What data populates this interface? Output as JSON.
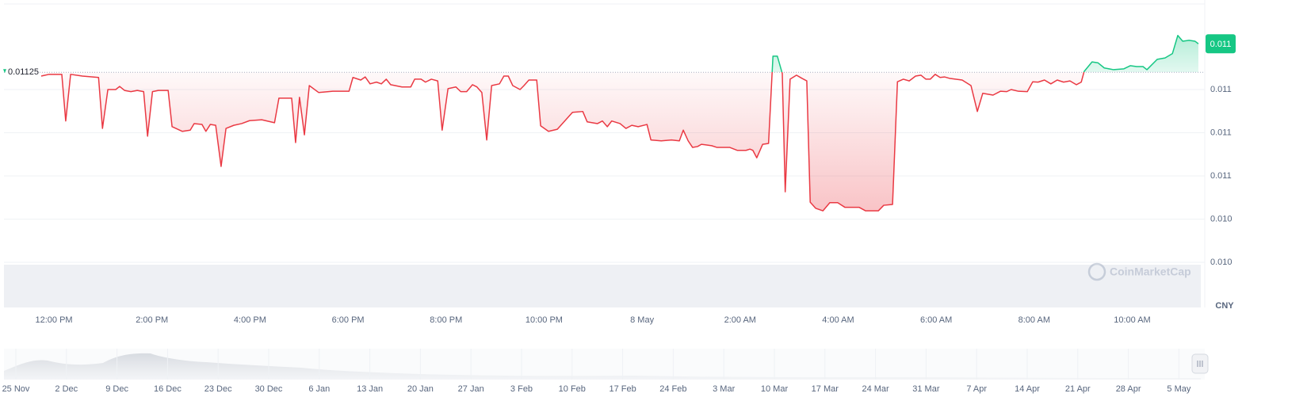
{
  "chart_data": {
    "type": "line",
    "x": [
      11.74,
      11.9,
      12.16,
      12.24,
      12.34,
      12.58,
      12.91,
      12.99,
      13.1,
      13.26,
      13.34,
      13.44,
      13.57,
      13.7,
      13.83,
      13.91,
      14.01,
      14.13,
      14.33,
      14.41,
      14.62,
      14.78,
      14.86,
      15.02,
      15.1,
      15.19,
      15.3,
      15.41,
      15.51,
      15.67,
      15.83,
      15.99,
      16.24,
      16.5,
      16.59,
      16.85,
      16.93,
      17.01,
      17.11,
      17.21,
      17.4,
      17.69,
      18.02,
      18.1,
      18.26,
      18.35,
      18.45,
      18.58,
      18.68,
      18.78,
      18.87,
      19.1,
      19.28,
      19.36,
      19.49,
      19.58,
      19.7,
      19.83,
      19.92,
      20.04,
      20.2,
      20.3,
      20.42,
      20.54,
      20.63,
      20.73,
      20.83,
      20.93,
      21.09,
      21.18,
      21.27,
      21.36,
      21.51,
      21.59,
      21.69,
      21.85,
      21.93,
      22.09,
      22.27,
      22.58,
      22.79,
      22.88,
      23.09,
      23.19,
      23.29,
      23.38,
      23.55,
      23.67,
      23.79,
      23.92,
      24.1,
      24.18,
      24.39,
      24.6,
      24.76,
      24.84,
      24.94,
      25.03,
      25.13,
      25.21,
      25.42,
      25.53,
      25.79,
      25.94,
      26.12,
      26.2,
      26.26,
      26.34,
      26.46,
      26.58,
      26.67,
      26.76,
      26.86,
      26.92,
      27.02,
      27.15,
      27.26,
      27.36,
      27.43,
      27.54,
      27.69,
      27.83,
      27.99,
      28.14,
      28.43,
      28.56,
      28.82,
      28.93,
      29.11,
      29.21,
      29.33,
      29.45,
      29.58,
      29.69,
      29.79,
      29.88,
      29.98,
      30.08,
      30.17,
      30.27,
      30.53,
      30.71,
      30.84,
      30.95,
      31.16,
      31.31,
      31.44,
      31.53,
      31.68,
      31.86,
      31.97,
      32.08,
      32.21,
      32.34,
      32.47,
      32.6,
      32.73,
      32.86,
      32.96,
      33.02,
      33.18,
      33.3,
      33.43,
      33.62,
      33.83,
      33.96,
      34.09,
      34.22,
      34.3,
      34.51,
      34.67,
      34.82,
      34.93,
      35.03,
      35.16,
      35.28,
      35.35
    ],
    "values": [
      0.011228,
      0.011238,
      0.011238,
      0.010968,
      0.011238,
      0.011228,
      0.01122,
      0.010925,
      0.01115,
      0.01115,
      0.011168,
      0.011145,
      0.011138,
      0.011145,
      0.011138,
      0.01088,
      0.011138,
      0.011145,
      0.011145,
      0.010935,
      0.010908,
      0.010915,
      0.010953,
      0.010948,
      0.010908,
      0.010948,
      0.010943,
      0.010705,
      0.010925,
      0.010943,
      0.010953,
      0.01097,
      0.010975,
      0.010958,
      0.0111,
      0.0111,
      0.010843,
      0.011105,
      0.010888,
      0.011173,
      0.011133,
      0.01114,
      0.01114,
      0.01122,
      0.011205,
      0.011223,
      0.011183,
      0.011193,
      0.011183,
      0.01121,
      0.011178,
      0.011165,
      0.011165,
      0.01121,
      0.01121,
      0.011193,
      0.01121,
      0.0112,
      0.010915,
      0.011155,
      0.011165,
      0.011138,
      0.011138,
      0.011178,
      0.011165,
      0.011133,
      0.010858,
      0.011173,
      0.011183,
      0.011228,
      0.011228,
      0.011173,
      0.01115,
      0.011173,
      0.011205,
      0.011205,
      0.01094,
      0.010908,
      0.01092,
      0.011018,
      0.011023,
      0.010963,
      0.010953,
      0.010968,
      0.010935,
      0.010968,
      0.010953,
      0.010925,
      0.010943,
      0.010935,
      0.010948,
      0.010858,
      0.010853,
      0.010858,
      0.010853,
      0.010915,
      0.010853,
      0.010815,
      0.01082,
      0.010833,
      0.010825,
      0.010815,
      0.010815,
      0.010798,
      0.010798,
      0.010805,
      0.010798,
      0.010755,
      0.010833,
      0.010838,
      0.011343,
      0.011343,
      0.011243,
      0.010558,
      0.01121,
      0.011233,
      0.011215,
      0.0112,
      0.010498,
      0.010463,
      0.010448,
      0.010495,
      0.010495,
      0.010468,
      0.010468,
      0.010448,
      0.010448,
      0.01048,
      0.010485,
      0.011195,
      0.01121,
      0.0112,
      0.011228,
      0.011233,
      0.01121,
      0.01121,
      0.011238,
      0.01122,
      0.011223,
      0.011215,
      0.011205,
      0.011173,
      0.011023,
      0.011128,
      0.011118,
      0.01114,
      0.011138,
      0.01115,
      0.01114,
      0.011138,
      0.011195,
      0.011193,
      0.011205,
      0.011183,
      0.011205,
      0.011193,
      0.0112,
      0.011178,
      0.011193,
      0.011255,
      0.01131,
      0.011305,
      0.011275,
      0.011265,
      0.01127,
      0.011288,
      0.011283,
      0.011283,
      0.011265,
      0.011325,
      0.011333,
      0.011358,
      0.011463,
      0.01143,
      0.011435,
      0.01143,
      0.011415
    ],
    "last_value_label": "0.011",
    "baseline": 0.01125,
    "color_up": "#16c784",
    "color_down": "#ea3943",
    "xlim": [
      10.98,
      35.48
    ],
    "xticks": [
      {
        "value": 12,
        "label": "12:00 PM"
      },
      {
        "value": 14,
        "label": "2:00 PM"
      },
      {
        "value": 16,
        "label": "4:00 PM"
      },
      {
        "value": 18,
        "label": "6:00 PM"
      },
      {
        "value": 20,
        "label": "8:00 PM"
      },
      {
        "value": 22,
        "label": "10:00 PM"
      },
      {
        "value": 24,
        "label": "8 May"
      },
      {
        "value": 26,
        "label": "2:00 AM"
      },
      {
        "value": 28,
        "label": "4:00 AM"
      },
      {
        "value": 30,
        "label": "6:00 AM"
      },
      {
        "value": 32,
        "label": "8:00 AM"
      },
      {
        "value": 34,
        "label": "10:00 AM"
      }
    ],
    "ylim": [
      0.01015,
      0.01165
    ],
    "yticks": [
      {
        "value": 0.01015,
        "label": "0.010"
      },
      {
        "value": 0.0104,
        "label": "0.010"
      },
      {
        "value": 0.01065,
        "label": "0.011"
      },
      {
        "value": 0.0109,
        "label": "0.011"
      },
      {
        "value": 0.01115,
        "label": "0.011"
      }
    ],
    "grid": true,
    "currency": "CNY",
    "watermark": "CoinMarketCap",
    "navigator": {
      "labels": [
        "25 Nov",
        "2 Dec",
        "9 Dec",
        "16 Dec",
        "23 Dec",
        "30 Dec",
        "6 Jan",
        "13 Jan",
        "20 Jan",
        "27 Jan",
        "3 Feb",
        "10 Feb",
        "17 Feb",
        "24 Feb",
        "3 Mar",
        "10 Mar",
        "17 Mar",
        "24 Mar",
        "31 Mar",
        "7 Apr",
        "14 Apr",
        "21 Apr",
        "28 Apr",
        "5 May"
      ]
    }
  }
}
